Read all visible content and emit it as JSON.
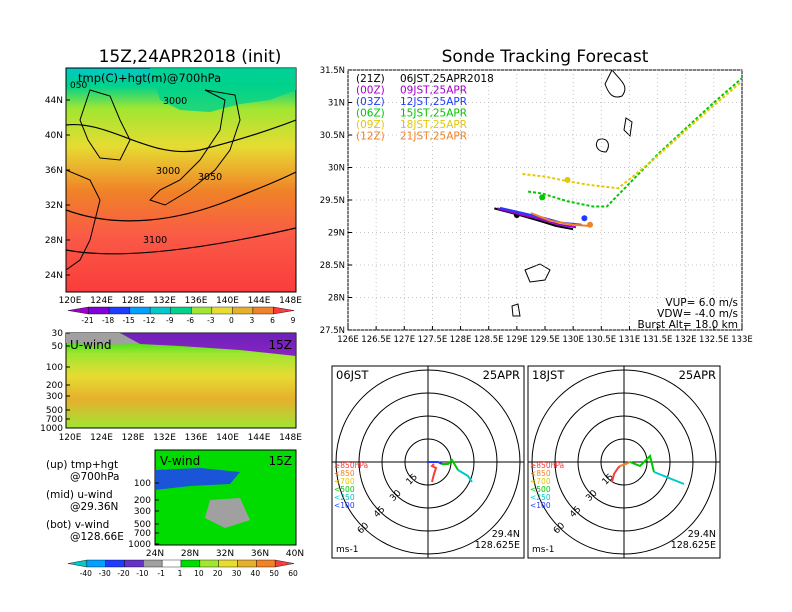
{
  "left": {
    "title": "15Z,24APR2018 (init)",
    "map_label": "tmp(C)+hgt(m)@700hPa",
    "map_corner": "050",
    "map_lat_ticks": [
      "44N",
      "40N",
      "36N",
      "32N",
      "28N",
      "24N"
    ],
    "map_lon_ticks": [
      "120E",
      "124E",
      "128E",
      "132E",
      "136E",
      "140E",
      "144E",
      "148E"
    ],
    "contour_labels": [
      "3000",
      "3000",
      "3050",
      "3100"
    ],
    "temp_colorbar": [
      "-21",
      "-18",
      "-15",
      "-12",
      "-9",
      "-6",
      "-3",
      "0",
      "3",
      "6",
      "9"
    ],
    "u_label": "U-wind",
    "u_time": "15Z",
    "u_p_ticks": [
      "30",
      "50",
      "100",
      "200",
      "300",
      "500",
      "700",
      "1000"
    ],
    "u_lon_ticks": [
      "120E",
      "124E",
      "128E",
      "132E",
      "136E",
      "140E",
      "144E",
      "148E"
    ],
    "v_label": "V-wind",
    "v_time": "15Z",
    "v_p_ticks": [
      "100",
      "200",
      "300",
      "500",
      "700",
      "1000"
    ],
    "v_lat_ticks": [
      "24N",
      "28N",
      "32N",
      "36N",
      "40N"
    ],
    "wind_colorbar": [
      "-40",
      "-30",
      "-20",
      "-10",
      "-1",
      "1",
      "10",
      "20",
      "30",
      "40",
      "50",
      "60"
    ],
    "notes": [
      {
        "a": "(up) tmp+hgt",
        "b": "@700hPa"
      },
      {
        "a": "(mid) u-wind",
        "b": "@29.36N"
      },
      {
        "a": "(bot) v-wind",
        "b": "@128.66E"
      }
    ]
  },
  "colors": {
    "temp_scale": [
      "#a000c8",
      "#8200dc",
      "#1e3cff",
      "#00a0ff",
      "#00c8c8",
      "#00d28c",
      "#a0e632",
      "#e6dc32",
      "#e6af2d",
      "#f08228",
      "#fa3c3c"
    ],
    "wind_scale": [
      "#00c8c8",
      "#00a0ff",
      "#1e3cff",
      "#6432c8",
      "#a0a0a0",
      "#ffffff",
      "#00dc00",
      "#a0e632",
      "#e6dc32",
      "#e6af2d",
      "#f08228",
      "#fa3c3c"
    ]
  },
  "right": {
    "title": "Sonde Tracking Forecast",
    "legend": [
      {
        "code": "(21Z)",
        "text": "06JST,25APR2018",
        "color": "#000000"
      },
      {
        "code": "(00Z)",
        "text": "09JST,25APR",
        "color": "#a000c8"
      },
      {
        "code": "(03Z)",
        "text": "12JST,25APR",
        "color": "#1e3cff"
      },
      {
        "code": "(06Z)",
        "text": "15JST,25APR",
        "color": "#00c800"
      },
      {
        "code": "(09Z)",
        "text": "18JST,25APR",
        "color": "#e6c800"
      },
      {
        "code": "(12Z)",
        "text": "21JST,25APR",
        "color": "#f08228"
      }
    ],
    "stats": [
      "VUP=  6.0 m/s",
      "VDW= -4.0 m/s",
      "Burst Alt= 18.0 km"
    ],
    "polar": [
      {
        "time": "06JST",
        "date": "25APR",
        "lat": "29.4N",
        "lon": "128.625E"
      },
      {
        "time": "18JST",
        "date": "25APR",
        "lat": "29.4N",
        "lon": "128.625E"
      }
    ],
    "polar_levels": [
      {
        "label": "≥850hPa",
        "color": "#fa3c3c"
      },
      {
        "label": "<850",
        "color": "#f08228"
      },
      {
        "label": "<700",
        "color": "#e6c800"
      },
      {
        "label": "<500",
        "color": "#00c800"
      },
      {
        "label": "<250",
        "color": "#00c8c8"
      },
      {
        "label": "<100",
        "color": "#1e3cff"
      }
    ],
    "polar_ring_labels": [
      "15",
      "30",
      "45",
      "60"
    ],
    "polar_unit": "ms-1"
  },
  "chart_data": {
    "type": "line",
    "title": "Sonde Tracking Forecast",
    "x_ticks": [
      "126E",
      "126.5E",
      "127E",
      "127.5E",
      "128E",
      "128.5E",
      "129E",
      "129.5E",
      "130E",
      "130.5E",
      "131E",
      "131.5E",
      "132E",
      "132.5E",
      "133E"
    ],
    "y_ticks": [
      "27.5N",
      "28N",
      "28.5N",
      "29N",
      "29.5N",
      "30N",
      "30.5N",
      "31N",
      "31.5N"
    ],
    "xlim": [
      126,
      133
    ],
    "ylim": [
      27.5,
      31.5
    ],
    "grid": true,
    "legend_position": "top-left",
    "series": [
      {
        "name": "(21Z) 06JST,25APR2018",
        "color": "#000000",
        "points": [
          [
            128.6,
            29.37
          ],
          [
            129.0,
            29.28
          ],
          [
            129.4,
            29.18
          ],
          [
            129.7,
            29.1
          ],
          [
            130.0,
            29.05
          ]
        ],
        "marker": [
          129.0,
          29.27
        ]
      },
      {
        "name": "(00Z) 09JST,25APR",
        "color": "#a000c8",
        "points": [
          [
            128.65,
            29.37
          ],
          [
            129.05,
            29.28
          ],
          [
            129.45,
            29.2
          ],
          [
            129.75,
            29.12
          ],
          [
            130.05,
            29.08
          ]
        ]
      },
      {
        "name": "(03Z) 12JST,25APR",
        "color": "#1e3cff",
        "points": [
          [
            128.7,
            29.38
          ],
          [
            129.1,
            29.3
          ],
          [
            129.5,
            29.22
          ],
          [
            129.8,
            29.15
          ],
          [
            130.15,
            29.12
          ]
        ],
        "marker": [
          130.2,
          29.22
        ]
      },
      {
        "name": "(06Z) 15JST,25APR",
        "color": "#00c800",
        "points": [
          [
            129.2,
            29.63
          ],
          [
            129.45,
            29.6
          ],
          [
            129.9,
            29.48
          ],
          [
            130.35,
            29.4
          ],
          [
            130.6,
            29.4
          ],
          [
            131.5,
            30.2
          ],
          [
            132.5,
            31.0
          ],
          [
            133.3,
            31.6
          ]
        ],
        "marker": [
          129.45,
          29.54
        ]
      },
      {
        "name": "(09Z) 18JST,25APR",
        "color": "#e6c800",
        "points": [
          [
            129.1,
            29.9
          ],
          [
            129.5,
            29.86
          ],
          [
            129.9,
            29.79
          ],
          [
            130.3,
            29.73
          ],
          [
            130.8,
            29.68
          ],
          [
            131.4,
            30.1
          ],
          [
            132.4,
            30.88
          ],
          [
            133.3,
            31.55
          ]
        ],
        "marker": [
          129.9,
          29.81
        ]
      },
      {
        "name": "(12Z) 21JST,25APR",
        "color": "#f08228",
        "points": [
          [
            129.25,
            29.3
          ],
          [
            129.6,
            29.18
          ],
          [
            130.0,
            29.12
          ],
          [
            130.3,
            29.1
          ]
        ],
        "marker": [
          130.3,
          29.12
        ]
      }
    ]
  }
}
